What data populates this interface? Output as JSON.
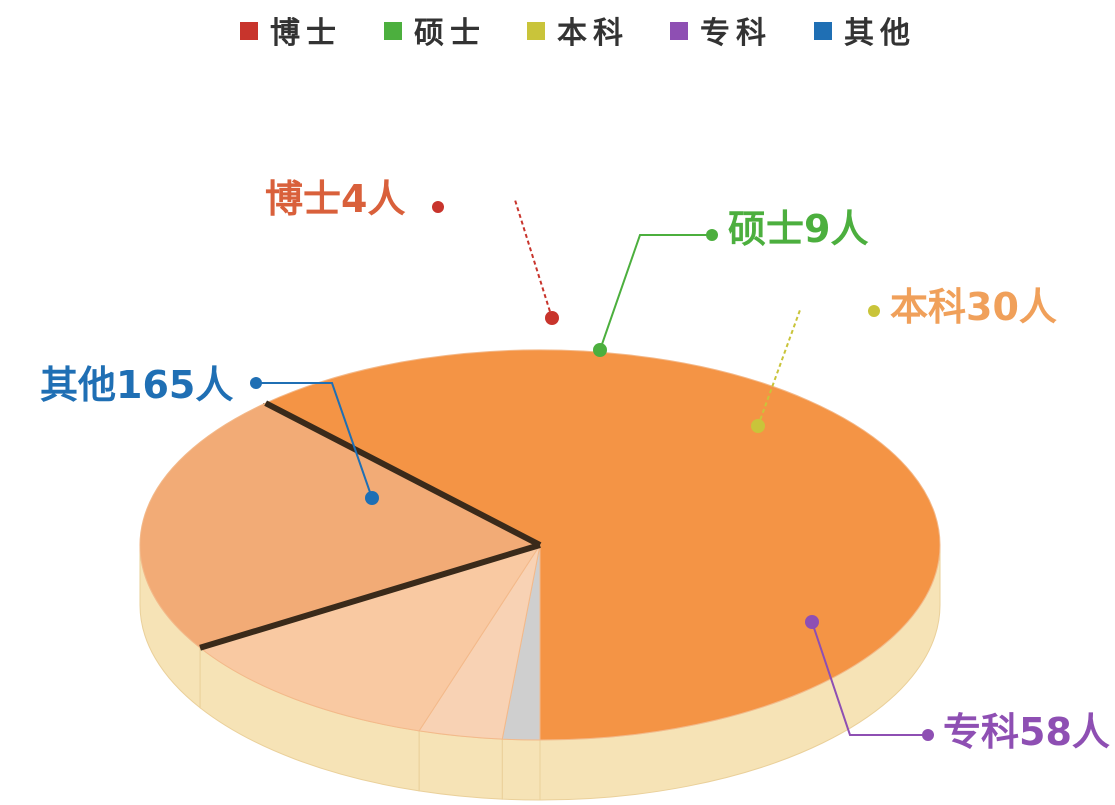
{
  "chart_data": {
    "type": "pie",
    "title": "",
    "legend_position": "top",
    "unit": "人",
    "slices": [
      {
        "name": "博士",
        "value": 4,
        "label": "博士4人",
        "color": "#c8342c",
        "fill": "#cfcfcf"
      },
      {
        "name": "硕士",
        "value": 9,
        "label": "硕士9人",
        "color": "#4caf3e",
        "fill": "#f8d2b4"
      },
      {
        "name": "本科",
        "value": 30,
        "label": "本科30人",
        "color": "#c9c43a",
        "fill": "#f9c9a2"
      },
      {
        "name": "专科",
        "value": 58,
        "label": "专科58人",
        "color": "#8e4fb3",
        "fill": "#f2ab76"
      },
      {
        "name": "其他",
        "value": 165,
        "label": "其他165人",
        "color": "#1f6fb4",
        "fill": "#f49445"
      }
    ],
    "label_colors": {
      "博士": "#d9603b",
      "硕士": "#4caf3e",
      "本科": "#f0a05a",
      "专科": "#8e4fb3",
      "其他": "#1f6fb4"
    }
  }
}
